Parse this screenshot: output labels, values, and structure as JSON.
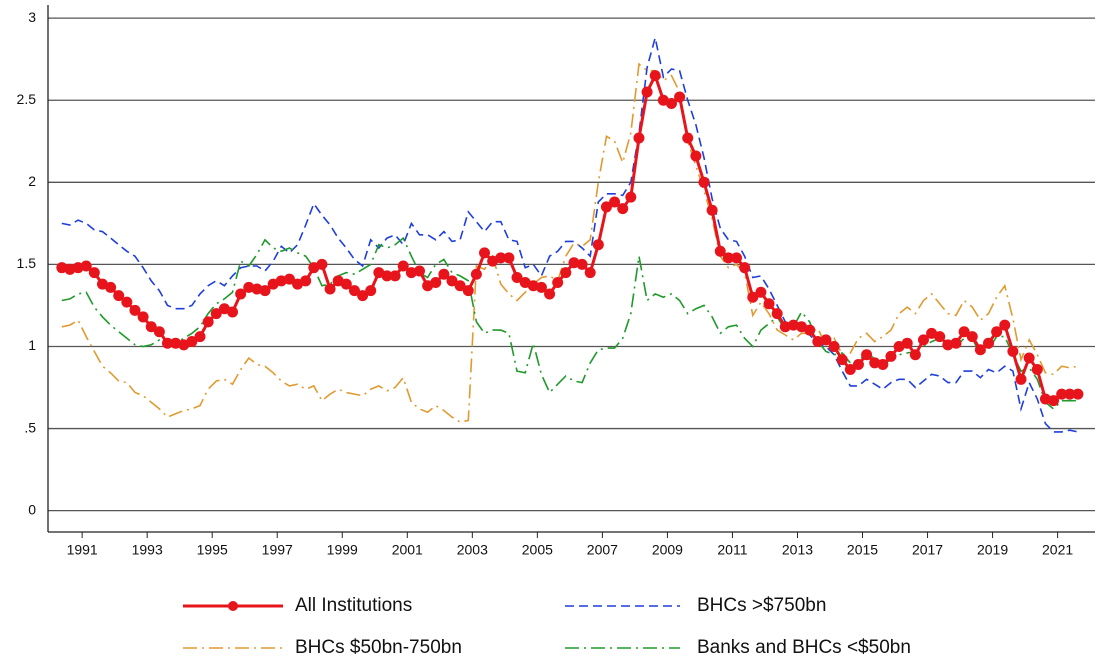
{
  "chart_data": {
    "type": "line",
    "x": [
      1990.875,
      1991.125,
      1991.375,
      1991.625,
      1991.875,
      1992.125,
      1992.375,
      1992.625,
      1992.875,
      1993.125,
      1993.375,
      1993.625,
      1993.875,
      1994.125,
      1994.375,
      1994.625,
      1994.875,
      1995.125,
      1995.375,
      1995.625,
      1995.875,
      1996.125,
      1996.375,
      1996.625,
      1996.875,
      1997.125,
      1997.375,
      1997.625,
      1997.875,
      1998.125,
      1998.375,
      1998.625,
      1998.875,
      1999.125,
      1999.375,
      1999.625,
      1999.875,
      2000.125,
      2000.375,
      2000.625,
      2000.875,
      2001.125,
      2001.375,
      2001.625,
      2001.875,
      2002.125,
      2002.375,
      2002.625,
      2002.875,
      2003.125,
      2003.375,
      2003.625,
      2003.875,
      2004.125,
      2004.375,
      2004.625,
      2004.875,
      2005.125,
      2005.375,
      2005.625,
      2005.875,
      2006.125,
      2006.375,
      2006.625,
      2006.875,
      2007.125,
      2007.375,
      2007.625,
      2007.875,
      2008.125,
      2008.375,
      2008.625,
      2008.875,
      2009.125,
      2009.375,
      2009.625,
      2009.875,
      2010.125,
      2010.375,
      2010.625,
      2010.875,
      2011.125,
      2011.375,
      2011.625,
      2011.875,
      2012.125,
      2012.375,
      2012.625,
      2012.875,
      2013.125,
      2013.375,
      2013.625,
      2013.875,
      2014.125,
      2014.375,
      2014.625,
      2014.875,
      2015.125,
      2015.375,
      2015.625,
      2015.875,
      2016.125,
      2016.375,
      2016.625,
      2016.875,
      2017.125,
      2017.375,
      2017.625,
      2017.875,
      2018.125,
      2018.375,
      2018.625,
      2018.875,
      2019.125,
      2019.375,
      2019.625,
      2019.875,
      2020.125,
      2020.375,
      2020.625,
      2020.875,
      2021.125,
      2021.375,
      2021.625,
      2021.875,
      2022.125
    ],
    "series": [
      {
        "name": "All Institutions",
        "color": "#e8141c",
        "line_style": "solid",
        "markers": true,
        "values": [
          1.48,
          1.47,
          1.48,
          1.49,
          1.45,
          1.38,
          1.36,
          1.31,
          1.27,
          1.22,
          1.18,
          1.12,
          1.09,
          1.02,
          1.02,
          1.01,
          1.03,
          1.06,
          1.15,
          1.2,
          1.23,
          1.21,
          1.32,
          1.36,
          1.35,
          1.34,
          1.38,
          1.4,
          1.41,
          1.38,
          1.4,
          1.48,
          1.5,
          1.35,
          1.4,
          1.38,
          1.34,
          1.31,
          1.34,
          1.45,
          1.43,
          1.43,
          1.49,
          1.45,
          1.46,
          1.37,
          1.39,
          1.44,
          1.4,
          1.37,
          1.34,
          1.44,
          1.57,
          1.52,
          1.54,
          1.54,
          1.42,
          1.39,
          1.37,
          1.36,
          1.32,
          1.39,
          1.45,
          1.51,
          1.5,
          1.45,
          1.62,
          1.85,
          1.88,
          1.84,
          1.91,
          2.27,
          2.55,
          2.65,
          2.5,
          2.48,
          2.52,
          2.27,
          2.16,
          2.0,
          1.83,
          1.58,
          1.54,
          1.54,
          1.48,
          1.3,
          1.33,
          1.26,
          1.2,
          1.12,
          1.13,
          1.12,
          1.1,
          1.03,
          1.04,
          1.0,
          0.92,
          0.86,
          0.89,
          0.95,
          0.9,
          0.89,
          0.94,
          1.0,
          1.02,
          0.95,
          1.04,
          1.08,
          1.06,
          1.01,
          1.02,
          1.09,
          1.06,
          0.98,
          1.02,
          1.09,
          1.13,
          0.97,
          0.8,
          0.93,
          0.86,
          0.68,
          0.67,
          0.71,
          0.71,
          0.71
        ]
      },
      {
        "name": "BHCs >$750bn",
        "color": "#1f3fdc",
        "line_style": "dashed",
        "markers": false,
        "values": [
          1.75,
          1.74,
          1.77,
          1.75,
          1.71,
          1.7,
          1.66,
          1.62,
          1.58,
          1.55,
          1.48,
          1.4,
          1.34,
          1.25,
          1.23,
          1.23,
          1.25,
          1.32,
          1.37,
          1.4,
          1.37,
          1.43,
          1.48,
          1.49,
          1.49,
          1.46,
          1.52,
          1.61,
          1.57,
          1.62,
          1.74,
          1.87,
          1.8,
          1.74,
          1.66,
          1.6,
          1.53,
          1.49,
          1.65,
          1.6,
          1.66,
          1.68,
          1.62,
          1.75,
          1.68,
          1.68,
          1.65,
          1.7,
          1.64,
          1.65,
          1.82,
          1.76,
          1.7,
          1.76,
          1.76,
          1.65,
          1.64,
          1.48,
          1.5,
          1.43,
          1.55,
          1.58,
          1.64,
          1.64,
          1.6,
          1.55,
          1.88,
          1.93,
          1.93,
          1.92,
          2.0,
          2.3,
          2.7,
          2.88,
          2.64,
          2.69,
          2.68,
          2.5,
          2.35,
          2.15,
          1.9,
          1.72,
          1.65,
          1.64,
          1.55,
          1.42,
          1.43,
          1.35,
          1.25,
          1.15,
          1.12,
          1.1,
          1.07,
          1.02,
          1.0,
          0.95,
          0.85,
          0.76,
          0.76,
          0.8,
          0.77,
          0.74,
          0.78,
          0.8,
          0.8,
          0.75,
          0.79,
          0.83,
          0.82,
          0.78,
          0.78,
          0.85,
          0.85,
          0.81,
          0.86,
          0.84,
          0.88,
          0.85,
          0.62,
          0.78,
          0.68,
          0.53,
          0.48,
          0.48,
          0.49,
          0.48
        ]
      },
      {
        "name": "BHCs $50bn-750bn",
        "color": "#e09a30",
        "line_style": "dash-dot",
        "markers": false,
        "values": [
          1.12,
          1.13,
          1.16,
          1.06,
          0.97,
          0.88,
          0.84,
          0.79,
          0.78,
          0.72,
          0.7,
          0.66,
          0.62,
          0.57,
          0.59,
          0.61,
          0.62,
          0.64,
          0.74,
          0.79,
          0.8,
          0.77,
          0.86,
          0.93,
          0.89,
          0.88,
          0.84,
          0.79,
          0.76,
          0.77,
          0.74,
          0.76,
          0.67,
          0.71,
          0.74,
          0.72,
          0.71,
          0.7,
          0.74,
          0.76,
          0.73,
          0.75,
          0.81,
          0.66,
          0.62,
          0.6,
          0.64,
          0.61,
          0.57,
          0.54,
          0.55,
          1.49,
          1.47,
          1.55,
          1.38,
          1.32,
          1.28,
          1.33,
          1.38,
          1.42,
          1.43,
          1.4,
          1.55,
          1.63,
          1.61,
          1.65,
          2.0,
          2.28,
          2.25,
          2.12,
          2.3,
          2.72,
          2.68,
          2.68,
          2.62,
          2.65,
          2.55,
          2.25,
          2.1,
          1.95,
          1.78,
          1.55,
          1.48,
          1.5,
          1.45,
          1.19,
          1.27,
          1.2,
          1.1,
          1.07,
          1.04,
          1.08,
          1.08,
          1.11,
          1.01,
          1.05,
          0.95,
          0.96,
          1.05,
          1.08,
          1.03,
          1.06,
          1.1,
          1.2,
          1.24,
          1.2,
          1.28,
          1.32,
          1.26,
          1.2,
          1.19,
          1.28,
          1.24,
          1.16,
          1.2,
          1.3,
          1.37,
          1.17,
          0.92,
          1.04,
          0.95,
          0.84,
          0.83,
          0.88,
          0.87,
          0.88
        ]
      },
      {
        "name": "Banks and BHCs <$50bn",
        "color": "#1f9a2a",
        "line_style": "dash-dot",
        "markers": false,
        "values": [
          1.28,
          1.29,
          1.32,
          1.33,
          1.24,
          1.18,
          1.13,
          1.09,
          1.05,
          1.01,
          1.0,
          1.01,
          1.04,
          1.01,
          1.02,
          1.05,
          1.08,
          1.12,
          1.2,
          1.26,
          1.29,
          1.33,
          1.52,
          1.49,
          1.56,
          1.65,
          1.6,
          1.58,
          1.6,
          1.57,
          1.55,
          1.48,
          1.37,
          1.38,
          1.43,
          1.45,
          1.44,
          1.47,
          1.5,
          1.62,
          1.6,
          1.62,
          1.66,
          1.55,
          1.45,
          1.42,
          1.5,
          1.53,
          1.45,
          1.43,
          1.4,
          1.15,
          1.08,
          1.1,
          1.1,
          1.08,
          0.85,
          0.84,
          1.02,
          0.83,
          0.72,
          0.77,
          0.82,
          0.79,
          0.78,
          0.9,
          0.98,
          0.99,
          0.99,
          1.05,
          1.2,
          1.55,
          1.28,
          1.32,
          1.3,
          1.32,
          1.28,
          1.2,
          1.23,
          1.25,
          1.18,
          1.08,
          1.12,
          1.13,
          1.05,
          1.0,
          1.1,
          1.14,
          1.18,
          1.1,
          1.12,
          1.21,
          1.15,
          1.03,
          0.97,
          0.95,
          0.96,
          0.9,
          0.92,
          0.95,
          0.93,
          0.89,
          0.92,
          0.95,
          0.96,
          0.97,
          1.0,
          1.03,
          1.05,
          1.02,
          1.0,
          1.05,
          1.05,
          0.95,
          0.98,
          1.06,
          1.06,
          0.95,
          0.85,
          0.87,
          0.8,
          0.66,
          0.62,
          0.67,
          0.67,
          0.67
        ]
      }
    ],
    "xlim": [
      1990.45,
      2022.65
    ],
    "xticks": [
      {
        "value": 1991.5,
        "label": "1991"
      },
      {
        "value": 1993.5,
        "label": "1993"
      },
      {
        "value": 1995.5,
        "label": "1995"
      },
      {
        "value": 1997.5,
        "label": "1997"
      },
      {
        "value": 1999.5,
        "label": "1999"
      },
      {
        "value": 2001.5,
        "label": "2001"
      },
      {
        "value": 2003.5,
        "label": "2003"
      },
      {
        "value": 2005.5,
        "label": "2005"
      },
      {
        "value": 2007.5,
        "label": "2007"
      },
      {
        "value": 2009.5,
        "label": "2009"
      },
      {
        "value": 2011.5,
        "label": "2011"
      },
      {
        "value": 2013.5,
        "label": "2013"
      },
      {
        "value": 2015.5,
        "label": "2015"
      },
      {
        "value": 2017.5,
        "label": "2017"
      },
      {
        "value": 2019.5,
        "label": "2019"
      },
      {
        "value": 2021.5,
        "label": "2021"
      }
    ],
    "ylim": [
      -0.13,
      3.08
    ],
    "yticks": [
      0,
      {
        "value": 0.5,
        "label": ".5"
      },
      1,
      1.5,
      2,
      2.5,
      3
    ],
    "grid": true,
    "legend": "bottom"
  }
}
